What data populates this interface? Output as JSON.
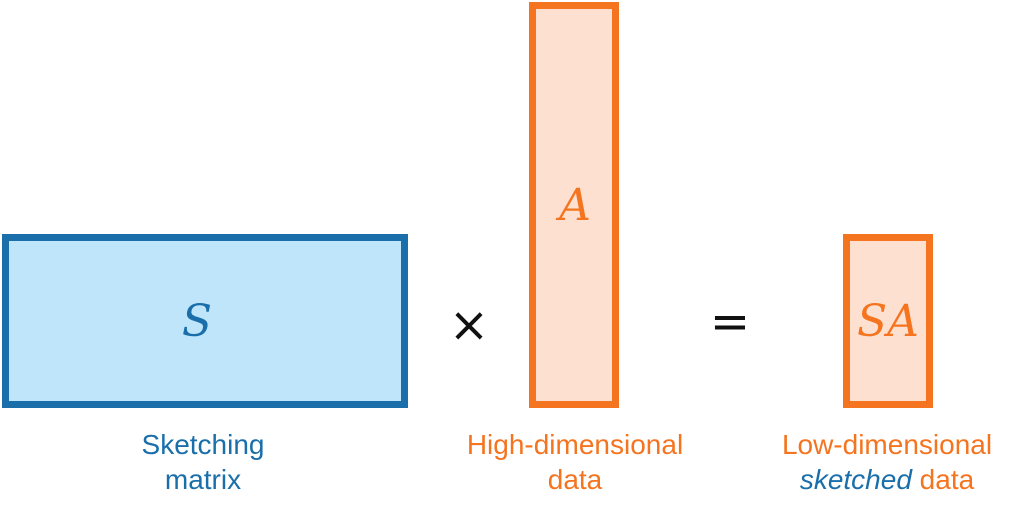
{
  "matrices": {
    "sketch_symbol": "S",
    "data_symbol": "A",
    "result_symbol": "SA"
  },
  "operators": {
    "times": "×",
    "equals": "="
  },
  "labels": {
    "sketch": {
      "line1": "Sketching",
      "line2": "matrix"
    },
    "data": {
      "line1": "High-dimensional",
      "line2": "data"
    },
    "result": {
      "line1": "Low-dimensional",
      "line2_emph": "sketched",
      "line2_rest": " data"
    }
  },
  "colors": {
    "blue_fill": "#bfe5fb",
    "blue_stroke": "#1a6faa",
    "orange_fill": "#fde0cf",
    "orange_stroke": "#f5741f"
  }
}
